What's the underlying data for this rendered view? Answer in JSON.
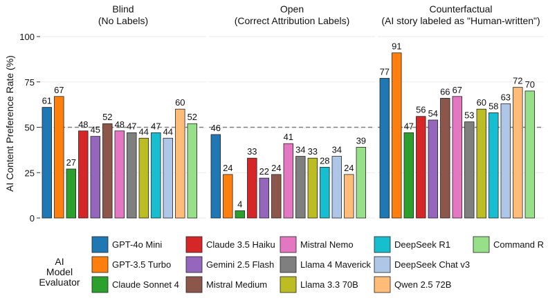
{
  "chart_data": {
    "type": "bar",
    "ylabel": "AI Content Preference Rate (%)",
    "ylim": [
      0,
      100
    ],
    "yticks": [
      0,
      25,
      50,
      75,
      100
    ],
    "reference_line": 50,
    "legend_title": [
      "AI",
      "Model",
      "Evaluator"
    ],
    "models": [
      {
        "name": "GPT-4o Mini",
        "color": "#1f77b4"
      },
      {
        "name": "GPT-3.5 Turbo",
        "color": "#ff7f0e"
      },
      {
        "name": "Claude Sonnet 4",
        "color": "#2ca02c"
      },
      {
        "name": "Claude 3.5 Haiku",
        "color": "#d62728"
      },
      {
        "name": "Gemini 2.5 Flash",
        "color": "#9467bd"
      },
      {
        "name": "Mistral Medium",
        "color": "#8c564b"
      },
      {
        "name": "Mistral Nemo",
        "color": "#e377c2"
      },
      {
        "name": "Llama 4 Maverick",
        "color": "#7f7f7f"
      },
      {
        "name": "Llama 3.3 70B",
        "color": "#bcbd22"
      },
      {
        "name": "DeepSeek R1",
        "color": "#17becf"
      },
      {
        "name": "DeepSeek Chat v3",
        "color": "#aec7e8"
      },
      {
        "name": "Qwen 2.5 72B",
        "color": "#ffbb78"
      },
      {
        "name": "Command R",
        "color": "#98df8a"
      }
    ],
    "panels": [
      {
        "title": [
          "Blind",
          "(No Labels)"
        ],
        "values": [
          61,
          67,
          27,
          48,
          45,
          52,
          48,
          47,
          44,
          47,
          44,
          60,
          52
        ]
      },
      {
        "title": [
          "Open",
          "(Correct Attribution Labels)"
        ],
        "values": [
          46,
          24,
          4,
          33,
          22,
          24,
          41,
          34,
          33,
          28,
          34,
          24,
          39
        ]
      },
      {
        "title": [
          "Counterfactual",
          "(AI story labeled as \"Human-written\")"
        ],
        "values": [
          77,
          91,
          47,
          56,
          54,
          66,
          67,
          53,
          60,
          58,
          63,
          72,
          70
        ]
      }
    ]
  }
}
